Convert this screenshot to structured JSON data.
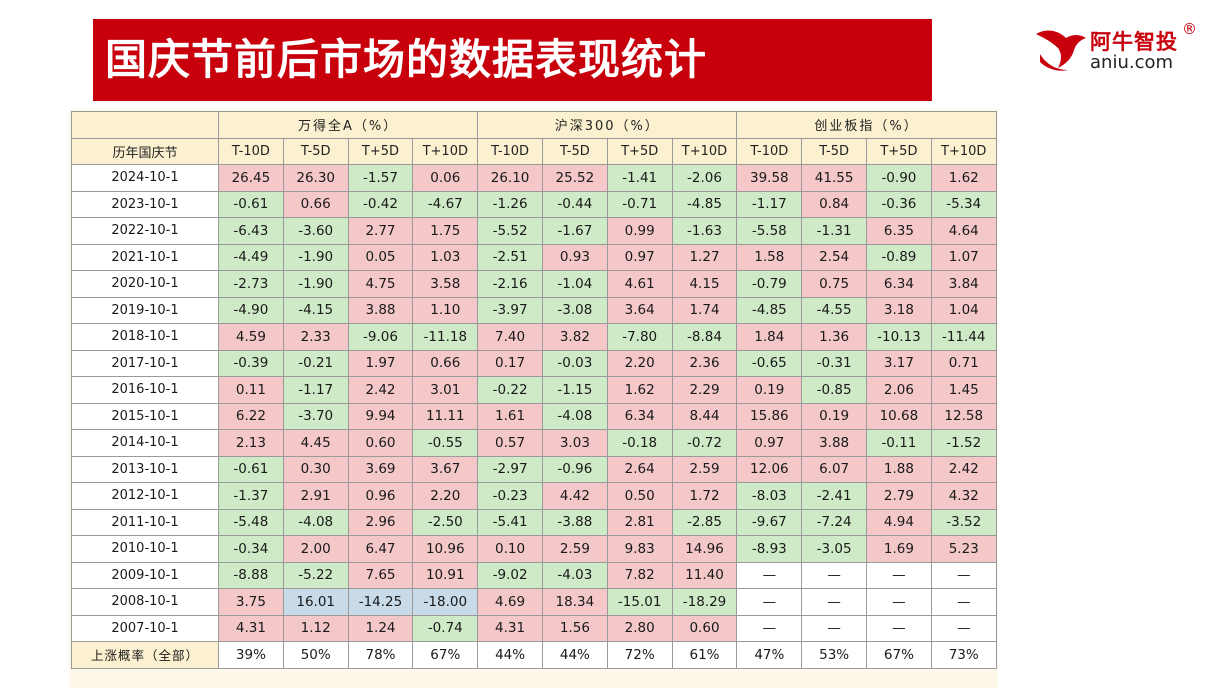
{
  "title": "国庆节前后市场的数据表现统计",
  "logo": {
    "brand_cn": "阿牛智投",
    "registered": "®",
    "brand_en": "aniu.com",
    "icon": "bull-head-logo-icon",
    "color": "#c8000c"
  },
  "colors": {
    "banner": "#c8000c",
    "positive_cell": "#f4c7c9",
    "negative_cell": "#cfeac6",
    "header_bg": "#fbf1d0"
  },
  "table": {
    "groups": [
      "万得全A（%）",
      "沪深300（%）",
      "创业板指（%）"
    ],
    "row_header_label": "历年国庆节",
    "columns": [
      "T-10D",
      "T-5D",
      "T+5D",
      "T+10D"
    ],
    "rows": [
      {
        "date": "2024-10-1",
        "values": [
          "26.45",
          "26.30",
          "-1.57",
          "0.06",
          "26.10",
          "25.52",
          "-1.41",
          "-2.06",
          "39.58",
          "41.55",
          "-0.90",
          "1.62"
        ]
      },
      {
        "date": "2023-10-1",
        "values": [
          "-0.61",
          "0.66",
          "-0.42",
          "-4.67",
          "-1.26",
          "-0.44",
          "-0.71",
          "-4.85",
          "-1.17",
          "0.84",
          "-0.36",
          "-5.34"
        ]
      },
      {
        "date": "2022-10-1",
        "values": [
          "-6.43",
          "-3.60",
          "2.77",
          "1.75",
          "-5.52",
          "-1.67",
          "0.99",
          "-1.63",
          "-5.58",
          "-1.31",
          "6.35",
          "4.64"
        ]
      },
      {
        "date": "2021-10-1",
        "values": [
          "-4.49",
          "-1.90",
          "0.05",
          "1.03",
          "-2.51",
          "0.93",
          "0.97",
          "1.27",
          "1.58",
          "2.54",
          "-0.89",
          "1.07"
        ]
      },
      {
        "date": "2020-10-1",
        "values": [
          "-2.73",
          "-1.90",
          "4.75",
          "3.58",
          "-2.16",
          "-1.04",
          "4.61",
          "4.15",
          "-0.79",
          "0.75",
          "6.34",
          "3.84"
        ]
      },
      {
        "date": "2019-10-1",
        "values": [
          "-4.90",
          "-4.15",
          "3.88",
          "1.10",
          "-3.97",
          "-3.08",
          "3.64",
          "1.74",
          "-4.85",
          "-4.55",
          "3.18",
          "1.04"
        ]
      },
      {
        "date": "2018-10-1",
        "values": [
          "4.59",
          "2.33",
          "-9.06",
          "-11.18",
          "7.40",
          "3.82",
          "-7.80",
          "-8.84",
          "1.84",
          "1.36",
          "-10.13",
          "-11.44"
        ]
      },
      {
        "date": "2017-10-1",
        "values": [
          "-0.39",
          "-0.21",
          "1.97",
          "0.66",
          "0.17",
          "-0.03",
          "2.20",
          "2.36",
          "-0.65",
          "-0.31",
          "3.17",
          "0.71"
        ]
      },
      {
        "date": "2016-10-1",
        "values": [
          "0.11",
          "-1.17",
          "2.42",
          "3.01",
          "-0.22",
          "-1.15",
          "1.62",
          "2.29",
          "0.19",
          "-0.85",
          "2.06",
          "1.45"
        ]
      },
      {
        "date": "2015-10-1",
        "values": [
          "6.22",
          "-3.70",
          "9.94",
          "11.11",
          "1.61",
          "-4.08",
          "6.34",
          "8.44",
          "15.86",
          "0.19",
          "10.68",
          "12.58"
        ]
      },
      {
        "date": "2014-10-1",
        "values": [
          "2.13",
          "4.45",
          "0.60",
          "-0.55",
          "0.57",
          "3.03",
          "-0.18",
          "-0.72",
          "0.97",
          "3.88",
          "-0.11",
          "-1.52"
        ]
      },
      {
        "date": "2013-10-1",
        "values": [
          "-0.61",
          "0.30",
          "3.69",
          "3.67",
          "-2.97",
          "-0.96",
          "2.64",
          "2.59",
          "12.06",
          "6.07",
          "1.88",
          "2.42"
        ]
      },
      {
        "date": "2012-10-1",
        "values": [
          "-1.37",
          "2.91",
          "0.96",
          "2.20",
          "-0.23",
          "4.42",
          "0.50",
          "1.72",
          "-8.03",
          "-2.41",
          "2.79",
          "4.32"
        ]
      },
      {
        "date": "2011-10-1",
        "values": [
          "-5.48",
          "-4.08",
          "2.96",
          "-2.50",
          "-5.41",
          "-3.88",
          "2.81",
          "-2.85",
          "-9.67",
          "-7.24",
          "4.94",
          "-3.52"
        ]
      },
      {
        "date": "2010-10-1",
        "values": [
          "-0.34",
          "2.00",
          "6.47",
          "10.96",
          "0.10",
          "2.59",
          "9.83",
          "14.96",
          "-8.93",
          "-3.05",
          "1.69",
          "5.23"
        ]
      },
      {
        "date": "2009-10-1",
        "values": [
          "-8.88",
          "-5.22",
          "7.65",
          "10.91",
          "-9.02",
          "-4.03",
          "7.82",
          "11.40",
          "—",
          "—",
          "—",
          "—"
        ]
      },
      {
        "date": "2008-10-1",
        "values": [
          "3.75",
          "16.01",
          "-14.25",
          "-18.00",
          "4.69",
          "18.34",
          "-15.01",
          "-18.29",
          "—",
          "—",
          "—",
          "—"
        ],
        "highlight": [
          1,
          2,
          3
        ]
      },
      {
        "date": "2007-10-1",
        "values": [
          "4.31",
          "1.12",
          "1.24",
          "-0.74",
          "4.31",
          "1.56",
          "2.80",
          "0.60",
          "—",
          "—",
          "—",
          "—"
        ]
      }
    ],
    "summary": {
      "label": "上涨概率（全部）",
      "values": [
        "39%",
        "50%",
        "78%",
        "67%",
        "44%",
        "44%",
        "72%",
        "61%",
        "47%",
        "53%",
        "67%",
        "73%"
      ]
    }
  }
}
